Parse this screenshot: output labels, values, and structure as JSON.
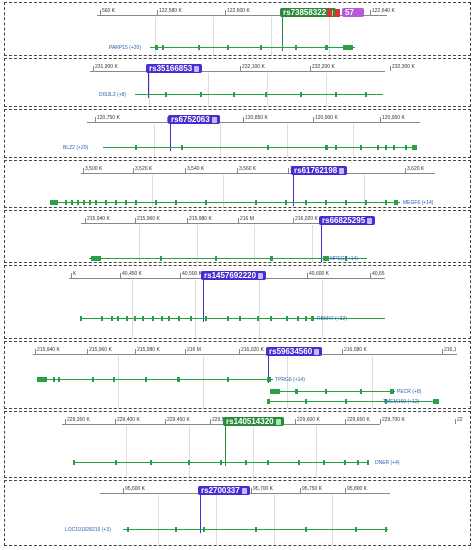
{
  "panels": [
    {
      "ticks": [
        "560 K",
        "122,580 K",
        "122,600 K",
        "122,620 K",
        "122,640 K"
      ],
      "snp": {
        "label": "rs73858322",
        "color": "green"
      },
      "extra_tag": "57",
      "gene": "PARP15 (+20)"
    },
    {
      "ticks": [
        "231,900 K",
        "232,000 K",
        "232,100 K",
        "232,200 K",
        "232,300 K"
      ],
      "snp": {
        "label": "rs35166853",
        "color": "blue"
      },
      "gene": "DIS3L2 (+8)"
    },
    {
      "ticks": [
        "120,750 K",
        "120,800 K",
        "120,850 K",
        "120,900 K",
        "120,950 K"
      ],
      "snp": {
        "label": "rs6752063",
        "color": "blue"
      },
      "gene": "BLZ2 (+20)"
    },
    {
      "ticks": [
        "3,500 K",
        "3,520 K",
        "3,540 K",
        "3,560 K",
        "3,600 K",
        "3,620 K"
      ],
      "snp": {
        "label": "rs61762198",
        "color": "blue"
      },
      "gene": "MEGF6 (+14)"
    },
    {
      "ticks": [
        "215,940 K",
        "215,960 K",
        "215,980 K",
        "216 M",
        "216,020 K"
      ],
      "snp": {
        "label": "rs66825295",
        "color": "blue"
      },
      "gene": "MPEG (+14)"
    },
    {
      "ticks": [
        "K",
        "40,450 K",
        "40,500 K",
        "40,600 K",
        "40,65"
      ],
      "snp": {
        "label": "rs1457692220",
        "color": "blue"
      },
      "gene": "RBM47 (+32)"
    },
    {
      "ticks": [
        "215,940 K",
        "215,960 K",
        "215,980 K",
        "216 M",
        "216,020 K",
        "216,060 K",
        "216,080 K",
        "216,1"
      ],
      "snp": {
        "label": "rs59634560",
        "color": "blue"
      },
      "gene": "TPRG6 (+14)",
      "gene2": "PECR (+8)",
      "gene3": "TMEM169 (+12)"
    },
    {
      "ticks": [
        "229,350 K",
        "229,400 K",
        "229,450 K",
        "229,500 K",
        "229,600 K",
        "229,650 K",
        "229,700 K",
        "22"
      ],
      "snp": {
        "label": "rs140514320",
        "color": "green"
      },
      "gene": "DNER (+4)"
    },
    {
      "ticks": [
        "95,600 K",
        "95,700 K",
        "95,750 K",
        "95,800 K"
      ],
      "snp": {
        "label": "rs2700337",
        "color": "blue"
      },
      "gene": "LOC101928219 (+3)"
    }
  ]
}
